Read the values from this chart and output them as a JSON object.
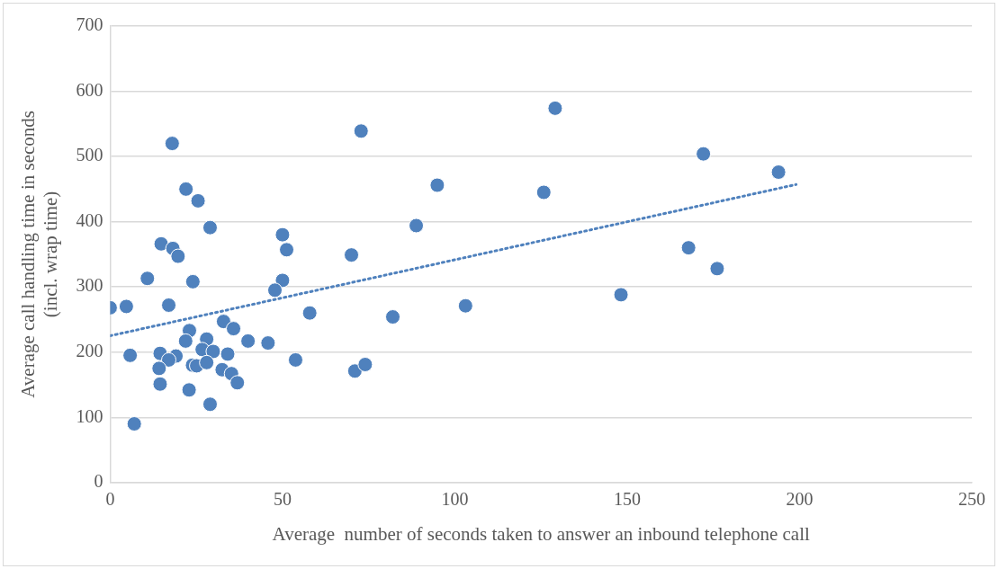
{
  "chart_data": {
    "type": "scatter",
    "xlabel": "Average  number of seconds taken to answer an inbound telephone call",
    "ylabel": "Average call handling time in seconds\n(incl. wrap time)",
    "series": [
      {
        "color": "#4f81bd",
        "marker": "circle",
        "x": [
          0,
          4.7,
          29.0,
          14.8,
          18.2,
          19.7,
          50.0,
          51.2,
          70.0,
          10.8,
          24.0,
          50.0,
          47.8,
          17.0,
          57.9,
          32.9,
          35.8,
          23.0,
          21.9,
          28.0,
          40.0,
          45.8,
          26.7,
          29.9,
          34.1,
          5.8,
          14.5,
          19.1,
          17.0,
          53.8,
          23.9,
          25.1,
          28.0,
          14.2,
          32.5,
          35.2,
          36.9,
          71.0,
          74.0,
          14.5,
          22.9,
          29.0,
          7.0,
          18.0,
          22.0,
          25.5,
          72.8,
          129.1,
          172.1,
          193.9,
          94.9,
          125.8,
          88.8,
          167.8,
          176.1,
          148.2,
          103.1,
          82.0
        ],
        "values": [
          268,
          270,
          391,
          366,
          359,
          347,
          380,
          357,
          349,
          313,
          308,
          310,
          295,
          272,
          260,
          247,
          236,
          233,
          217,
          220,
          217,
          214,
          204,
          201,
          197,
          195,
          198,
          194,
          188,
          188,
          180,
          179,
          184,
          175,
          173,
          167,
          153,
          171,
          181,
          151,
          142,
          120,
          90,
          520,
          450,
          432,
          539,
          574,
          504,
          476,
          456,
          445,
          394,
          360,
          328,
          288,
          271,
          254
        ]
      },
      {
        "type": "line",
        "color": "#4f81bd",
        "line_style": "dotted",
        "x": [
          0,
          199
        ],
        "values": [
          225,
          457
        ]
      }
    ],
    "xlim": [
      0,
      250
    ],
    "xticks": [
      0,
      50,
      100,
      150,
      200,
      250
    ],
    "ylim": [
      0,
      700
    ],
    "yticks": [
      0,
      100,
      200,
      300,
      400,
      500,
      600,
      700
    ],
    "grid": "y",
    "legend": false
  }
}
